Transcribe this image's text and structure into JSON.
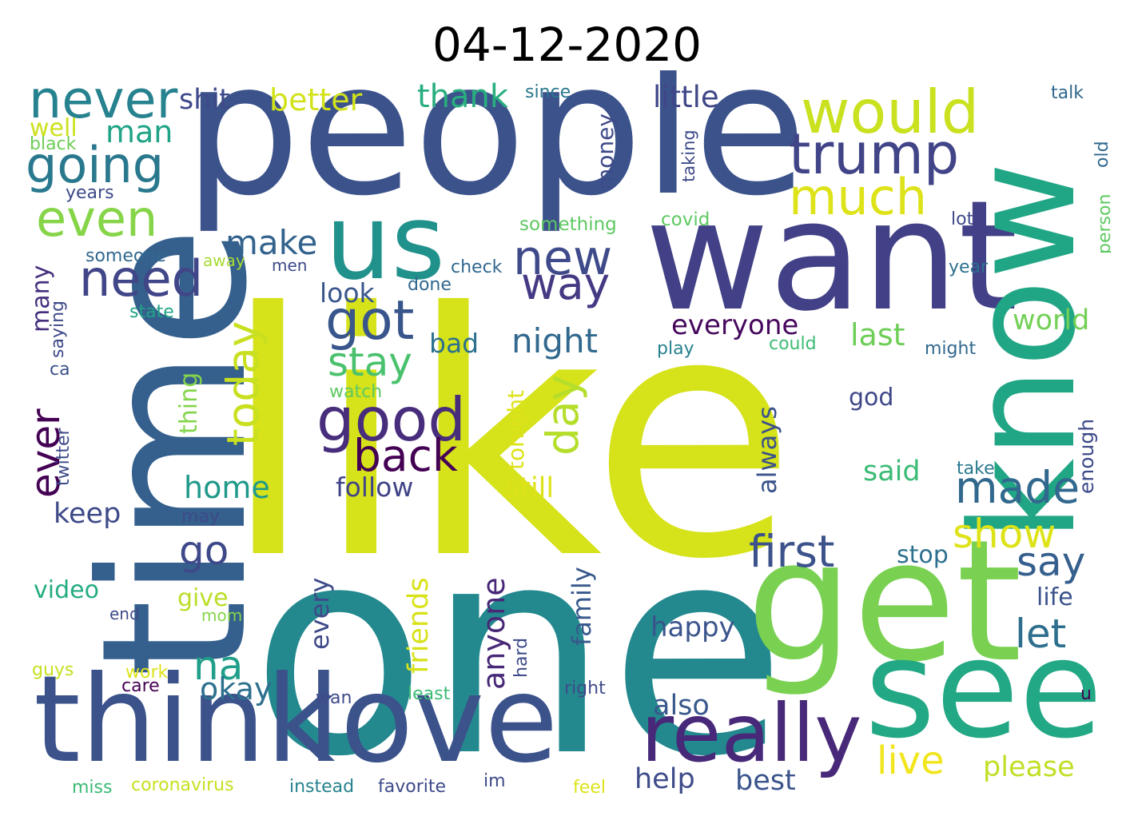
{
  "title": "04-12-2020",
  "palette": {
    "p1": "#44105a",
    "p2": "#463582",
    "p3": "#3a5a8c",
    "p4": "#2c7b8e",
    "p5": "#20918b",
    "p6": "#26ad81",
    "p7": "#5ac863",
    "p8": "#a9db33",
    "p9": "#d6e21a",
    "p10": "#fde725"
  },
  "words": [
    {
      "text": "like",
      "color": "#d6e21a"
    },
    {
      "text": "one",
      "color": "#23898e"
    },
    {
      "text": "people",
      "color": "#3b528b"
    },
    {
      "text": "want",
      "color": "#424086"
    },
    {
      "text": "know",
      "color": "#21a685"
    },
    {
      "text": "get",
      "color": "#7ad151"
    },
    {
      "text": "time",
      "color": "#35608d"
    },
    {
      "text": "think",
      "color": "#3b528b"
    },
    {
      "text": "love",
      "color": "#3b528b"
    },
    {
      "text": "see",
      "color": "#22a884"
    },
    {
      "text": "us",
      "color": "#21918c"
    },
    {
      "text": "really",
      "color": "#482878"
    },
    {
      "text": "would",
      "color": "#cae11f"
    },
    {
      "text": "trump",
      "color": "#414487"
    },
    {
      "text": "never",
      "color": "#26828e"
    },
    {
      "text": "going",
      "color": "#2a788e"
    },
    {
      "text": "even",
      "color": "#86d549"
    },
    {
      "text": "need",
      "color": "#404688"
    },
    {
      "text": "much",
      "color": "#dde318"
    },
    {
      "text": "good",
      "color": "#472d7b"
    },
    {
      "text": "got",
      "color": "#39568c"
    },
    {
      "text": "new",
      "color": "#3e4a89"
    },
    {
      "text": "way",
      "color": "#443983"
    },
    {
      "text": "made",
      "color": "#31688e"
    },
    {
      "text": "first",
      "color": "#3b528b"
    },
    {
      "text": "back",
      "color": "#440154"
    },
    {
      "text": "day",
      "color": "#b5de2b"
    },
    {
      "text": "stay",
      "color": "#4ac16d"
    },
    {
      "text": "today",
      "color": "#c8e020"
    },
    {
      "text": "ever",
      "color": "#440154"
    },
    {
      "text": "go",
      "color": "#3e4989"
    },
    {
      "text": "na",
      "color": "#1f9e89"
    },
    {
      "text": "let",
      "color": "#2e6f8e"
    },
    {
      "text": "say",
      "color": "#355f8d"
    },
    {
      "text": "show",
      "color": "#dde318"
    },
    {
      "text": "live",
      "color": "#f1e51d"
    },
    {
      "text": "please",
      "color": "#c0df25"
    },
    {
      "text": "make",
      "color": "#33638d"
    },
    {
      "text": "night",
      "color": "#31688e"
    },
    {
      "text": "everyone",
      "color": "#46085c"
    },
    {
      "text": "last",
      "color": "#6ece58"
    },
    {
      "text": "world",
      "color": "#73d056"
    },
    {
      "text": "thank",
      "color": "#29af7f"
    },
    {
      "text": "little",
      "color": "#3f4788"
    },
    {
      "text": "better",
      "color": "#d2e21b"
    },
    {
      "text": "shit",
      "color": "#3e4a89"
    },
    {
      "text": "man",
      "color": "#20a386"
    },
    {
      "text": "well",
      "color": "#cde11d"
    },
    {
      "text": "home",
      "color": "#1f998a"
    },
    {
      "text": "follow",
      "color": "#414487"
    },
    {
      "text": "still",
      "color": "#dde318"
    },
    {
      "text": "said",
      "color": "#3bbb75"
    },
    {
      "text": "okay",
      "color": "#2d708e"
    },
    {
      "text": "also",
      "color": "#38598c"
    },
    {
      "text": "help",
      "color": "#3e4c8a"
    },
    {
      "text": "best",
      "color": "#3a548c"
    },
    {
      "text": "happy",
      "color": "#3a548c"
    },
    {
      "text": "keep",
      "color": "#3e4a89"
    },
    {
      "text": "look",
      "color": "#39558c"
    },
    {
      "text": "bad",
      "color": "#2c718e"
    },
    {
      "text": "video",
      "color": "#25ac82"
    },
    {
      "text": "give",
      "color": "#bade28"
    },
    {
      "text": "god",
      "color": "#3f4788"
    },
    {
      "text": "life",
      "color": "#3b528b"
    },
    {
      "text": "stop",
      "color": "#2d708e"
    },
    {
      "text": "money",
      "color": "#3e4a89"
    },
    {
      "text": "many",
      "color": "#46307e"
    },
    {
      "text": "thing",
      "color": "#84d44b"
    },
    {
      "text": "always",
      "color": "#3b528b"
    },
    {
      "text": "friends",
      "color": "#d8e219"
    },
    {
      "text": "anyone",
      "color": "#482878"
    },
    {
      "text": "every",
      "color": "#3e4a89"
    },
    {
      "text": "family",
      "color": "#38598c"
    },
    {
      "text": "tonight",
      "color": "#dde318"
    },
    {
      "text": "enough",
      "color": "#3e4a89"
    },
    {
      "text": "since",
      "color": "#2a788e"
    },
    {
      "text": "talk",
      "color": "#31688e"
    },
    {
      "text": "black",
      "color": "#6ece58"
    },
    {
      "text": "years",
      "color": "#3e4a89"
    },
    {
      "text": "something",
      "color": "#5ec962"
    },
    {
      "text": "covid",
      "color": "#5ec962"
    },
    {
      "text": "lot",
      "color": "#3e4a89"
    },
    {
      "text": "someone",
      "color": "#31688e"
    },
    {
      "text": "away",
      "color": "#a8db34"
    },
    {
      "text": "men",
      "color": "#3e4a89"
    },
    {
      "text": "check",
      "color": "#31688e"
    },
    {
      "text": "done",
      "color": "#31688e"
    },
    {
      "text": "year",
      "color": "#2d708e"
    },
    {
      "text": "state",
      "color": "#20a386"
    },
    {
      "text": "saying",
      "color": "#3e4a89"
    },
    {
      "text": "ca",
      "color": "#3b528b"
    },
    {
      "text": "play",
      "color": "#26828e"
    },
    {
      "text": "could",
      "color": "#3dbc74"
    },
    {
      "text": "might",
      "color": "#31688e"
    },
    {
      "text": "watch",
      "color": "#5ec962"
    },
    {
      "text": "twitter",
      "color": "#3e4a89"
    },
    {
      "text": "take",
      "color": "#2a788e"
    },
    {
      "text": "may",
      "color": "#3e4a89"
    },
    {
      "text": "taking",
      "color": "#3e4a89"
    },
    {
      "text": "person",
      "color": "#5ec962"
    },
    {
      "text": "old",
      "color": "#31688e"
    },
    {
      "text": "end",
      "color": "#3e4a89"
    },
    {
      "text": "mom",
      "color": "#86d549"
    },
    {
      "text": "guys",
      "color": "#c8e020"
    },
    {
      "text": "work",
      "color": "#dde318"
    },
    {
      "text": "care",
      "color": "#440154"
    },
    {
      "text": "wan",
      "color": "#3e4a89"
    },
    {
      "text": "least",
      "color": "#3bbb75"
    },
    {
      "text": "hard",
      "color": "#3e4a89"
    },
    {
      "text": "right",
      "color": "#3e4a89"
    },
    {
      "text": "u",
      "color": "#440154"
    },
    {
      "text": "miss",
      "color": "#3bbb75"
    },
    {
      "text": "coronavirus",
      "color": "#c8e020"
    },
    {
      "text": "instead",
      "color": "#26828e"
    },
    {
      "text": "favorite",
      "color": "#3e4a89"
    },
    {
      "text": "im",
      "color": "#3e4a89"
    },
    {
      "text": "feel",
      "color": "#dde318"
    }
  ]
}
